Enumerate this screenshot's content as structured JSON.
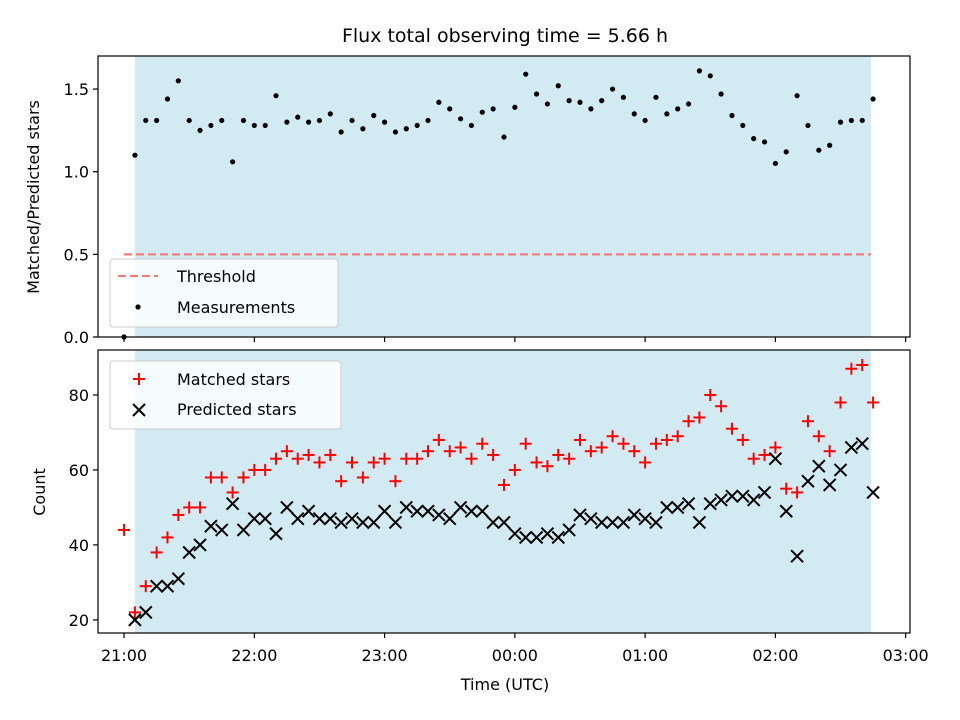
{
  "chart_data": [
    {
      "type": "scatter",
      "title": "Flux total observing time = 5.66 h",
      "xlabel": "",
      "ylabel": "Matched/Predicted stars",
      "xlim": [
        "20:48",
        "03:02"
      ],
      "ylim": [
        0,
        1.7
      ],
      "y_ticks": [
        "0.0",
        "0.5",
        "1.0",
        "1.5"
      ],
      "grid": false,
      "shaded_span": {
        "start": "21:05",
        "end": "02:44",
        "color": "#add8e6"
      },
      "threshold": {
        "name": "Threshold",
        "y": 0.5,
        "x_start": "21:00",
        "x_end": "02:44",
        "color": "#f08080",
        "style": "dashed"
      },
      "legend": {
        "placement": "lower-left",
        "entries": [
          "Threshold",
          "Measurements"
        ]
      },
      "series": [
        {
          "name": "Measurements",
          "marker": "dot",
          "color": "#000000",
          "points": [
            [
              "21:00",
              0.0
            ],
            [
              "21:05",
              1.1
            ],
            [
              "21:10",
              1.31
            ],
            [
              "21:15",
              1.31
            ],
            [
              "21:20",
              1.44
            ],
            [
              "21:25",
              1.55
            ],
            [
              "21:30",
              1.31
            ],
            [
              "21:35",
              1.25
            ],
            [
              "21:40",
              1.28
            ],
            [
              "21:45",
              1.31
            ],
            [
              "21:50",
              1.06
            ],
            [
              "21:55",
              1.31
            ],
            [
              "22:00",
              1.28
            ],
            [
              "22:05",
              1.28
            ],
            [
              "22:10",
              1.46
            ],
            [
              "22:15",
              1.3
            ],
            [
              "22:20",
              1.33
            ],
            [
              "22:25",
              1.3
            ],
            [
              "22:30",
              1.31
            ],
            [
              "22:35",
              1.35
            ],
            [
              "22:40",
              1.24
            ],
            [
              "22:45",
              1.31
            ],
            [
              "22:50",
              1.26
            ],
            [
              "22:55",
              1.34
            ],
            [
              "23:00",
              1.3
            ],
            [
              "23:05",
              1.24
            ],
            [
              "23:10",
              1.26
            ],
            [
              "23:15",
              1.28
            ],
            [
              "23:20",
              1.31
            ],
            [
              "23:25",
              1.42
            ],
            [
              "23:30",
              1.38
            ],
            [
              "23:35",
              1.32
            ],
            [
              "23:40",
              1.28
            ],
            [
              "23:45",
              1.36
            ],
            [
              "23:50",
              1.38
            ],
            [
              "23:55",
              1.21
            ],
            [
              "00:00",
              1.39
            ],
            [
              "00:05",
              1.59
            ],
            [
              "00:10",
              1.47
            ],
            [
              "00:15",
              1.41
            ],
            [
              "00:20",
              1.52
            ],
            [
              "00:25",
              1.43
            ],
            [
              "00:30",
              1.42
            ],
            [
              "00:35",
              1.38
            ],
            [
              "00:40",
              1.43
            ],
            [
              "00:45",
              1.5
            ],
            [
              "00:50",
              1.45
            ],
            [
              "00:55",
              1.35
            ],
            [
              "01:00",
              1.31
            ],
            [
              "01:05",
              1.45
            ],
            [
              "01:10",
              1.35
            ],
            [
              "01:15",
              1.38
            ],
            [
              "01:20",
              1.41
            ],
            [
              "01:25",
              1.61
            ],
            [
              "01:30",
              1.58
            ],
            [
              "01:35",
              1.47
            ],
            [
              "01:40",
              1.34
            ],
            [
              "01:45",
              1.28
            ],
            [
              "01:50",
              1.2
            ],
            [
              "01:55",
              1.18
            ],
            [
              "02:00",
              1.05
            ],
            [
              "02:05",
              1.12
            ],
            [
              "02:10",
              1.46
            ],
            [
              "02:15",
              1.28
            ],
            [
              "02:20",
              1.13
            ],
            [
              "02:25",
              1.16
            ],
            [
              "02:30",
              1.3
            ],
            [
              "02:35",
              1.31
            ],
            [
              "02:40",
              1.31
            ],
            [
              "02:45",
              1.44
            ]
          ]
        }
      ]
    },
    {
      "type": "scatter",
      "title": "",
      "xlabel": "Time (UTC)",
      "ylabel": "Count",
      "xlim": [
        "20:48",
        "03:02"
      ],
      "ylim": [
        16.5,
        92
      ],
      "x_ticks": [
        "21:00",
        "22:00",
        "23:00",
        "00:00",
        "01:00",
        "02:00",
        "03:00"
      ],
      "y_ticks": [
        "20",
        "40",
        "60",
        "80"
      ],
      "grid": false,
      "shaded_span": {
        "start": "21:05",
        "end": "02:44",
        "color": "#add8e6"
      },
      "legend": {
        "placement": "top-left",
        "entries": [
          "Matched stars",
          "Predicted stars"
        ]
      },
      "series": [
        {
          "name": "Matched stars",
          "marker": "plus",
          "color": "#ff0000",
          "points": [
            [
              "21:00",
              44
            ],
            [
              "21:05",
              22
            ],
            [
              "21:10",
              29
            ],
            [
              "21:15",
              38
            ],
            [
              "21:20",
              42
            ],
            [
              "21:25",
              48
            ],
            [
              "21:30",
              50
            ],
            [
              "21:35",
              50
            ],
            [
              "21:40",
              58
            ],
            [
              "21:45",
              58
            ],
            [
              "21:50",
              54
            ],
            [
              "21:55",
              58
            ],
            [
              "22:00",
              60
            ],
            [
              "22:05",
              60
            ],
            [
              "22:10",
              63
            ],
            [
              "22:15",
              65
            ],
            [
              "22:20",
              63
            ],
            [
              "22:25",
              64
            ],
            [
              "22:30",
              62
            ],
            [
              "22:35",
              64
            ],
            [
              "22:40",
              57
            ],
            [
              "22:45",
              62
            ],
            [
              "22:50",
              58
            ],
            [
              "22:55",
              62
            ],
            [
              "23:00",
              63
            ],
            [
              "23:05",
              57
            ],
            [
              "23:10",
              63
            ],
            [
              "23:15",
              63
            ],
            [
              "23:20",
              65
            ],
            [
              "23:25",
              68
            ],
            [
              "23:30",
              65
            ],
            [
              "23:35",
              66
            ],
            [
              "23:40",
              63
            ],
            [
              "23:45",
              67
            ],
            [
              "23:50",
              64
            ],
            [
              "23:55",
              56
            ],
            [
              "00:00",
              60
            ],
            [
              "00:05",
              67
            ],
            [
              "00:10",
              62
            ],
            [
              "00:15",
              61
            ],
            [
              "00:20",
              64
            ],
            [
              "00:25",
              63
            ],
            [
              "00:30",
              68
            ],
            [
              "00:35",
              65
            ],
            [
              "00:40",
              66
            ],
            [
              "00:45",
              69
            ],
            [
              "00:50",
              67
            ],
            [
              "00:55",
              65
            ],
            [
              "01:00",
              62
            ],
            [
              "01:05",
              67
            ],
            [
              "01:10",
              68
            ],
            [
              "01:15",
              69
            ],
            [
              "01:20",
              73
            ],
            [
              "01:25",
              74
            ],
            [
              "01:30",
              80
            ],
            [
              "01:35",
              77
            ],
            [
              "01:40",
              71
            ],
            [
              "01:45",
              68
            ],
            [
              "01:50",
              63
            ],
            [
              "01:55",
              64
            ],
            [
              "02:00",
              66
            ],
            [
              "02:05",
              55
            ],
            [
              "02:10",
              54
            ],
            [
              "02:15",
              73
            ],
            [
              "02:20",
              69
            ],
            [
              "02:25",
              65
            ],
            [
              "02:30",
              78
            ],
            [
              "02:35",
              87
            ],
            [
              "02:40",
              88
            ],
            [
              "02:45",
              78
            ]
          ]
        },
        {
          "name": "Predicted stars",
          "marker": "x",
          "color": "#000000",
          "points": [
            [
              "21:05",
              20
            ],
            [
              "21:10",
              22
            ],
            [
              "21:15",
              29
            ],
            [
              "21:20",
              29
            ],
            [
              "21:25",
              31
            ],
            [
              "21:30",
              38
            ],
            [
              "21:35",
              40
            ],
            [
              "21:40",
              45
            ],
            [
              "21:45",
              44
            ],
            [
              "21:50",
              51
            ],
            [
              "21:55",
              44
            ],
            [
              "22:00",
              47
            ],
            [
              "22:05",
              47
            ],
            [
              "22:10",
              43
            ],
            [
              "22:15",
              50
            ],
            [
              "22:20",
              47
            ],
            [
              "22:25",
              49
            ],
            [
              "22:30",
              47
            ],
            [
              "22:35",
              47
            ],
            [
              "22:40",
              46
            ],
            [
              "22:45",
              47
            ],
            [
              "22:50",
              46
            ],
            [
              "22:55",
              46
            ],
            [
              "23:00",
              49
            ],
            [
              "23:05",
              46
            ],
            [
              "23:10",
              50
            ],
            [
              "23:15",
              49
            ],
            [
              "23:20",
              49
            ],
            [
              "23:25",
              48
            ],
            [
              "23:30",
              47
            ],
            [
              "23:35",
              50
            ],
            [
              "23:40",
              49
            ],
            [
              "23:45",
              49
            ],
            [
              "23:50",
              46
            ],
            [
              "23:55",
              46
            ],
            [
              "00:00",
              43
            ],
            [
              "00:05",
              42
            ],
            [
              "00:10",
              42
            ],
            [
              "00:15",
              43
            ],
            [
              "00:20",
              42
            ],
            [
              "00:25",
              44
            ],
            [
              "00:30",
              48
            ],
            [
              "00:35",
              47
            ],
            [
              "00:40",
              46
            ],
            [
              "00:45",
              46
            ],
            [
              "00:50",
              46
            ],
            [
              "00:55",
              48
            ],
            [
              "01:00",
              47
            ],
            [
              "01:05",
              46
            ],
            [
              "01:10",
              50
            ],
            [
              "01:15",
              50
            ],
            [
              "01:20",
              51
            ],
            [
              "01:25",
              46
            ],
            [
              "01:30",
              51
            ],
            [
              "01:35",
              52
            ],
            [
              "01:40",
              53
            ],
            [
              "01:45",
              53
            ],
            [
              "01:50",
              52
            ],
            [
              "01:55",
              54
            ],
            [
              "02:00",
              63
            ],
            [
              "02:05",
              49
            ],
            [
              "02:10",
              37
            ],
            [
              "02:15",
              57
            ],
            [
              "02:20",
              61
            ],
            [
              "02:25",
              56
            ],
            [
              "02:30",
              60
            ],
            [
              "02:35",
              66
            ],
            [
              "02:40",
              67
            ],
            [
              "02:45",
              54
            ]
          ]
        }
      ]
    }
  ]
}
